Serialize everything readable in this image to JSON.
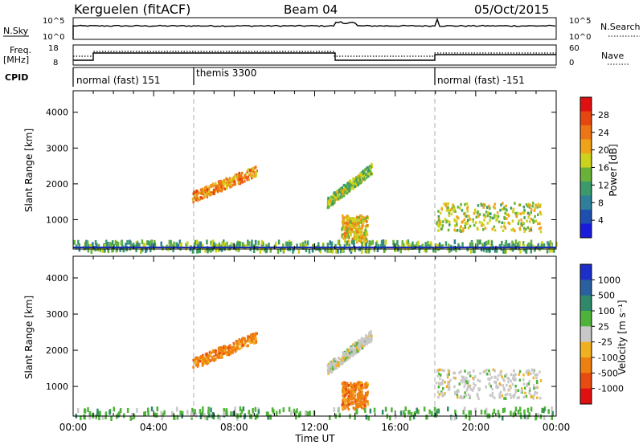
{
  "header": {
    "station": "Kerguelen (fitACF)",
    "beam": "Beam 04",
    "date": "05/Oct/2015"
  },
  "strips": {
    "nsky_label": "N.Sky",
    "nsky_ticks": [
      "10^5",
      "10^0"
    ],
    "nsearch_label": "N.Search",
    "nsearch_ticks": [
      "10^5",
      "10^0"
    ],
    "freq_label": "Freq.",
    "freq_unit": "[MHz]",
    "freq_ticks": [
      "18",
      "8"
    ],
    "nave_label": "Nave",
    "nave_ticks": [
      "60",
      "0"
    ],
    "cpid_label": "CPID",
    "cpid_segments": [
      "normal (fast) 151",
      "themis 3300",
      "normal (fast) -151"
    ]
  },
  "axes": {
    "ylabel": "Slant Range [km]",
    "xlabel": "Time UT",
    "xticks": [
      "00:00",
      "04:00",
      "08:00",
      "12:00",
      "16:00",
      "20:00",
      "00:00"
    ],
    "yticks": [
      "1000",
      "2000",
      "3000",
      "4000"
    ]
  },
  "power_scale": {
    "label": "Power [dB]",
    "ticks": [
      "4",
      "8",
      "12",
      "16",
      "20",
      "24",
      "28"
    ],
    "colors": [
      "#1a1adc",
      "#1f4fb0",
      "#2e7f9a",
      "#3a9a6a",
      "#6ab13a",
      "#cdd21c",
      "#f0a219",
      "#ee7515",
      "#e8460f",
      "#e01010"
    ]
  },
  "velocity_scale": {
    "label": "Velocity [m s⁻¹]",
    "ticks": [
      "1000",
      "500",
      "100",
      "25",
      "-25",
      "-100",
      "-500",
      "-1000"
    ],
    "colors": [
      "#1c2fc8",
      "#2a5fa0",
      "#2e8a6a",
      "#4fb33a",
      "#c8c8c8",
      "#f0b020",
      "#ee8010",
      "#e84a10",
      "#e01010"
    ]
  },
  "chart_data": [
    {
      "type": "heatmap",
      "title": "Power",
      "xlabel": "Time UT",
      "ylabel": "Slant Range [km]",
      "xlim": [
        0,
        24
      ],
      "ylim": [
        180,
        4600
      ],
      "colorbar_label": "Power [dB]",
      "colorbar_range": [
        0,
        30
      ],
      "cpid_boundaries_ut": [
        6.0,
        18.0
      ],
      "echo_regions": [
        {
          "t_start": 5.9,
          "t_end": 9.1,
          "r_start": 1650,
          "r_end": 2400,
          "power_db": 22
        },
        {
          "t_start": 12.6,
          "t_end": 14.8,
          "r_start": 1500,
          "r_end": 2450,
          "power_db": 14
        },
        {
          "t_start": 13.3,
          "t_end": 14.6,
          "r_start": 400,
          "r_end": 1150,
          "power_db": 18
        },
        {
          "t_start": 18.0,
          "t_end": 23.2,
          "r_start": 700,
          "r_end": 1500,
          "power_db": 16
        },
        {
          "t_start": 0.0,
          "t_end": 24.0,
          "r_start": 180,
          "r_end": 450,
          "power_db": 12
        }
      ]
    },
    {
      "type": "heatmap",
      "title": "Velocity",
      "xlabel": "Time UT",
      "ylabel": "Slant Range [km]",
      "xlim": [
        0,
        24
      ],
      "ylim": [
        180,
        4600
      ],
      "colorbar_label": "Velocity [m s⁻¹]",
      "colorbar_range": [
        -1000,
        1000
      ],
      "cpid_boundaries_ut": [
        6.0,
        18.0
      ],
      "echo_regions": [
        {
          "t_start": 5.9,
          "t_end": 9.1,
          "r_start": 1650,
          "r_end": 2400,
          "velocity": -200
        },
        {
          "t_start": 12.6,
          "t_end": 14.8,
          "r_start": 1500,
          "r_end": 2450,
          "velocity": 0
        },
        {
          "t_start": 13.3,
          "t_end": 14.6,
          "r_start": 400,
          "r_end": 1150,
          "velocity": -150
        },
        {
          "t_start": 18.0,
          "t_end": 23.2,
          "r_start": 700,
          "r_end": 1500,
          "velocity": -10
        },
        {
          "t_start": 0.0,
          "t_end": 24.0,
          "r_start": 180,
          "r_end": 450,
          "velocity": 20
        }
      ]
    }
  ]
}
